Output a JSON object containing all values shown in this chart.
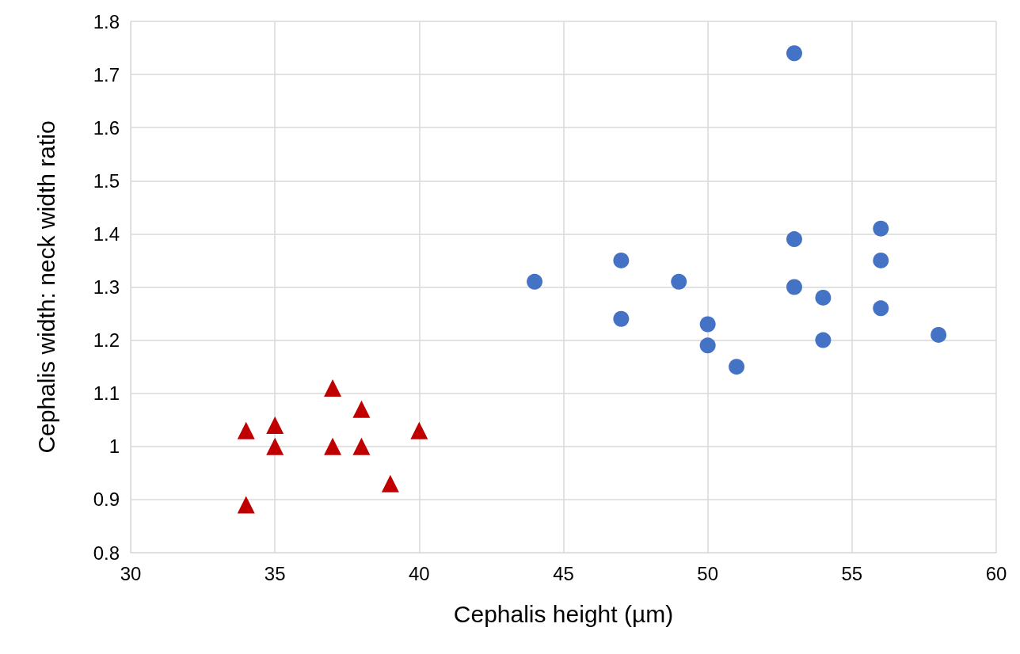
{
  "chart_data": {
    "type": "scatter",
    "xlabel": "Cephalis height (µm)",
    "ylabel": "Cephalis width: neck width ratio",
    "xlim": [
      30,
      60
    ],
    "xticks": [
      30,
      35,
      40,
      45,
      50,
      55,
      60
    ],
    "ylim": [
      0.8,
      1.8
    ],
    "yticks": [
      0.8,
      0.9,
      1,
      1.1,
      1.2,
      1.3,
      1.4,
      1.5,
      1.6,
      1.7,
      1.8
    ],
    "grid": true,
    "series": [
      {
        "color": "#4472c4",
        "marker": "circle",
        "x": [
          53,
          56,
          53,
          47,
          56,
          44,
          49,
          53,
          54,
          56,
          47,
          50,
          54,
          58,
          50,
          51
        ],
        "values": [
          1.74,
          1.41,
          1.39,
          1.35,
          1.35,
          1.31,
          1.31,
          1.3,
          1.28,
          1.26,
          1.24,
          1.23,
          1.2,
          1.21,
          1.19,
          1.15
        ]
      },
      {
        "color": "#c00000",
        "marker": "triangle",
        "x": [
          34,
          35,
          35,
          37,
          37,
          38,
          38,
          40,
          39,
          34
        ],
        "values": [
          1.03,
          1.04,
          1,
          1.11,
          1,
          1.07,
          1,
          1.03,
          0.93,
          0.89
        ]
      }
    ]
  }
}
